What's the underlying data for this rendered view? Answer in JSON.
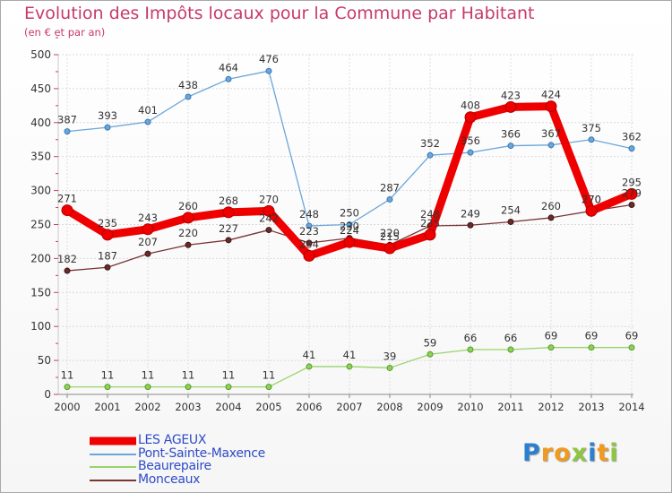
{
  "title": "Evolution des Impôts locaux pour la Commune par Habitant",
  "subtitle": "(en € et par an)",
  "chart_data": {
    "type": "line",
    "x": [
      "2000",
      "2001",
      "2002",
      "2003",
      "2004",
      "2005",
      "2006",
      "2007",
      "2008",
      "2009",
      "2010",
      "2011",
      "2012",
      "2013",
      "2014"
    ],
    "ylim": [
      0,
      500
    ],
    "yticks": [
      0,
      50,
      100,
      150,
      200,
      250,
      300,
      350,
      400,
      450,
      500
    ],
    "grid": true,
    "legend_position": "bottom",
    "series": [
      {
        "name": "LES AGEUX",
        "color": "#ee0000",
        "values": [
          271,
          235,
          243,
          260,
          268,
          270,
          204,
          224,
          215,
          235,
          408,
          423,
          424,
          270,
          295
        ],
        "labels": [
          "271",
          "235",
          "243",
          "260",
          "268",
          "270",
          "204",
          "224",
          "215",
          "235",
          "408",
          "423",
          "424",
          "270",
          "295"
        ]
      },
      {
        "name": "Pont-Sainte-Maxence",
        "color": "#5d9fd6",
        "values": [
          387,
          393,
          401,
          438,
          464,
          476,
          248,
          250,
          287,
          352,
          356,
          366,
          367,
          375,
          362
        ],
        "labels": [
          "387",
          "393",
          "401",
          "438",
          "464",
          "476",
          "248",
          "250",
          "287",
          "352",
          "356",
          "366",
          "367",
          "375",
          "362"
        ]
      },
      {
        "name": "Beaurepaire",
        "color": "#8cd15a",
        "values": [
          11,
          11,
          11,
          11,
          11,
          11,
          41,
          41,
          39,
          59,
          66,
          66,
          69,
          69,
          69
        ],
        "labels": [
          "11",
          "11",
          "11",
          "11",
          "11",
          "11",
          "41",
          "41",
          "39",
          "59",
          "66",
          "66",
          "69",
          "69",
          "69"
        ]
      },
      {
        "name": "Monceaux",
        "color": "#6b2a2a",
        "values": [
          182,
          187,
          207,
          220,
          227,
          242,
          223,
          230,
          220,
          248,
          249,
          254,
          260,
          270,
          279
        ],
        "labels": [
          "182",
          "187",
          "207",
          "220",
          "227",
          "242",
          "223",
          "230",
          "220",
          "248",
          "249",
          "254",
          "260",
          "270",
          "279"
        ]
      }
    ]
  },
  "logo": {
    "letters": [
      "P",
      "r",
      "o",
      "x",
      "i",
      "t",
      "i"
    ],
    "colors": [
      "#2a7fd1",
      "#f19a1e",
      "#f19a1e",
      "#8ec63f",
      "#2a7fd1",
      "#f19a1e",
      "#8ec63f"
    ]
  }
}
